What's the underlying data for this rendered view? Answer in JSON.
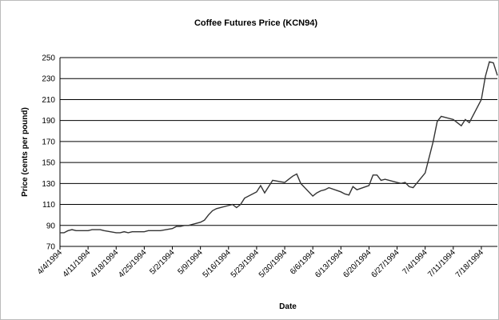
{
  "chart_data": {
    "type": "line",
    "title": "Coffee Futures Price (KCN94)",
    "x_label": "Date",
    "y_label": "Price (cents per pound)",
    "x": [
      "4/4/1994",
      "4/5/1994",
      "4/6/1994",
      "4/7/1994",
      "4/8/1994",
      "4/11/1994",
      "4/12/1994",
      "4/13/1994",
      "4/14/1994",
      "4/15/1994",
      "4/18/1994",
      "4/19/1994",
      "4/20/1994",
      "4/21/1994",
      "4/22/1994",
      "4/25/1994",
      "4/26/1994",
      "4/27/1994",
      "4/28/1994",
      "4/29/1994",
      "5/2/1994",
      "5/3/1994",
      "5/4/1994",
      "5/5/1994",
      "5/6/1994",
      "5/9/1994",
      "5/10/1994",
      "5/11/1994",
      "5/12/1994",
      "5/13/1994",
      "5/16/1994",
      "5/17/1994",
      "5/18/1994",
      "5/19/1994",
      "5/20/1994",
      "5/23/1994",
      "5/24/1994",
      "5/25/1994",
      "5/26/1994",
      "5/27/1994",
      "5/30/1994",
      "5/31/1994",
      "6/1/1994",
      "6/2/1994",
      "6/3/1994",
      "6/6/1994",
      "6/7/1994",
      "6/8/1994",
      "6/9/1994",
      "6/10/1994",
      "6/13/1994",
      "6/14/1994",
      "6/15/1994",
      "6/16/1994",
      "6/17/1994",
      "6/20/1994",
      "6/21/1994",
      "6/22/1994",
      "6/23/1994",
      "6/24/1994",
      "6/27/1994",
      "6/28/1994",
      "6/29/1994",
      "6/30/1994",
      "7/1/1994",
      "7/4/1994",
      "7/5/1994",
      "7/6/1994",
      "7/7/1994",
      "7/8/1994",
      "7/11/1994",
      "7/12/1994",
      "7/13/1994",
      "7/14/1994",
      "7/15/1994",
      "7/18/1994",
      "7/19/1994",
      "7/20/1994",
      "7/21/1994",
      "7/22/1994"
    ],
    "series": [
      {
        "name": "KCN94",
        "color": "#333333",
        "values": [
          83,
          83,
          85,
          86,
          85,
          85,
          86,
          86,
          86,
          85,
          83,
          83,
          84,
          83,
          84,
          84,
          85,
          85,
          85,
          85,
          87,
          89,
          89,
          90,
          90,
          93,
          95,
          100,
          104,
          106,
          109,
          110,
          107,
          110,
          116,
          122,
          128,
          121,
          127,
          133,
          131,
          134,
          137,
          139,
          130,
          118,
          121,
          123,
          124,
          126,
          122,
          120,
          119,
          127,
          124,
          128,
          138,
          138,
          133,
          134,
          131,
          130,
          131,
          127,
          126,
          140,
          155,
          170,
          189,
          194,
          191,
          188,
          185,
          191,
          188,
          210,
          232,
          246,
          245,
          233
        ]
      }
    ],
    "xlim": [
      "4/4/1994",
      "7/22/1994"
    ],
    "xticks": [
      "4/4/1994",
      "4/11/1994",
      "4/18/1994",
      "4/25/1994",
      "5/2/1994",
      "5/9/1994",
      "5/16/1994",
      "5/23/1994",
      "5/30/1994",
      "6/6/1994",
      "6/13/1994",
      "6/20/1994",
      "6/27/1994",
      "7/4/1994",
      "7/11/1994",
      "7/18/1994"
    ],
    "ylim": [
      70,
      250
    ],
    "yticks": [
      70,
      90,
      110,
      130,
      150,
      170,
      190,
      210,
      230,
      250
    ],
    "grid": true
  }
}
